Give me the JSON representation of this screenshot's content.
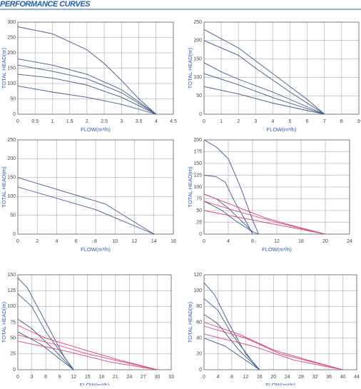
{
  "header": {
    "title": "PERFORMANCE CURVES"
  },
  "chart_data": [
    {
      "type": "line",
      "xlabel": "FLOW(m³/h)",
      "ylabel": "TOTAL HEAD(m)",
      "xlim": [
        0,
        4.5
      ],
      "xticks": [
        0,
        0.5,
        1,
        1.5,
        2,
        2.5,
        3,
        3.5,
        4,
        4.5
      ],
      "ylim": [
        0,
        300
      ],
      "yticks": [
        0,
        50,
        100,
        150,
        200,
        250,
        300
      ],
      "grid": true,
      "series": [
        {
          "color": "#3d5a8a",
          "x": [
            0,
            1,
            2,
            2.5,
            3,
            3.5,
            4
          ],
          "values": [
            285,
            262,
            210,
            165,
            110,
            50,
            0
          ]
        },
        {
          "color": "#3d5a8a",
          "x": [
            0,
            1,
            2,
            3,
            3.5,
            4
          ],
          "values": [
            180,
            160,
            130,
            80,
            40,
            0
          ]
        },
        {
          "color": "#3d5a8a",
          "x": [
            0,
            1,
            2,
            3,
            4
          ],
          "values": [
            160,
            140,
            115,
            70,
            0
          ]
        },
        {
          "color": "#3d5a8a",
          "x": [
            0,
            1,
            2,
            3,
            4
          ],
          "values": [
            130,
            118,
            95,
            55,
            0
          ]
        },
        {
          "color": "#3d5a8a",
          "x": [
            0,
            1,
            2,
            3,
            4
          ],
          "values": [
            92,
            72,
            55,
            32,
            0
          ]
        }
      ]
    },
    {
      "type": "line",
      "xlabel": "FLOW(m³/h)",
      "ylabel": "TOTAL HEAD(m)",
      "xlim": [
        0,
        9
      ],
      "xticks": [
        0,
        1,
        2,
        3,
        4,
        5,
        6,
        7,
        8,
        9
      ],
      "ylim": [
        0,
        250
      ],
      "yticks": [
        0,
        50,
        100,
        150,
        200,
        250
      ],
      "grid": true,
      "series": [
        {
          "color": "#3d5a8a",
          "x": [
            0,
            2,
            4,
            6,
            7
          ],
          "values": [
            230,
            180,
            110,
            40,
            0
          ]
        },
        {
          "color": "#3d5a8a",
          "x": [
            0,
            2,
            3,
            5,
            7
          ],
          "values": [
            200,
            160,
            125,
            60,
            0
          ]
        },
        {
          "color": "#3d5a8a",
          "x": [
            0,
            1,
            2,
            4,
            7
          ],
          "values": [
            140,
            115,
            95,
            60,
            0
          ]
        },
        {
          "color": "#3d5a8a",
          "x": [
            0,
            2,
            4,
            7
          ],
          "values": [
            110,
            80,
            45,
            0
          ]
        },
        {
          "color": "#3d5a8a",
          "x": [
            0,
            2,
            4,
            7
          ],
          "values": [
            75,
            55,
            30,
            0
          ]
        }
      ]
    },
    {
      "type": "line",
      "xlabel": "FLOW(m³/h)",
      "ylabel": "TOTAL HEAD(m)",
      "xlim": [
        0,
        16
      ],
      "xticks": [
        0,
        2,
        4,
        6,
        8,
        10,
        12,
        14,
        16
      ],
      "ylim": [
        0,
        250
      ],
      "yticks": [
        0,
        50,
        100,
        150,
        200,
        250
      ],
      "grid": true,
      "series": [
        {
          "color": "#3d5a8a",
          "x": [
            0,
            9,
            14
          ],
          "values": [
            150,
            80,
            0
          ]
        },
        {
          "color": "#3d5a8a",
          "x": [
            0,
            8,
            14
          ],
          "values": [
            125,
            65,
            0
          ]
        }
      ]
    },
    {
      "type": "line",
      "xlabel": "FLOW(m³/h)",
      "ylabel": "TOTAL HEAD(m)",
      "xlim": [
        0,
        24
      ],
      "xticks": [
        0,
        4,
        8,
        12,
        16,
        20,
        24
      ],
      "ylim": [
        0,
        200
      ],
      "yticks": [
        0,
        25,
        50,
        75,
        100,
        125,
        150,
        175,
        200
      ],
      "grid": true,
      "series": [
        {
          "color": "#3d5a8a",
          "x": [
            0,
            2,
            4,
            6,
            8,
            9
          ],
          "values": [
            200,
            185,
            160,
            100,
            30,
            0
          ]
        },
        {
          "color": "#3d5a8a",
          "x": [
            0,
            2,
            3.5,
            5,
            7,
            8
          ],
          "values": [
            125,
            122,
            110,
            70,
            25,
            0
          ]
        },
        {
          "color": "#3d5a8a",
          "x": [
            0,
            2,
            4,
            6,
            8,
            9
          ],
          "values": [
            85,
            75,
            55,
            30,
            5,
            0
          ]
        },
        {
          "color": "#3d5a8a",
          "x": [
            0,
            3,
            5,
            8
          ],
          "values": [
            70,
            50,
            30,
            5
          ]
        },
        {
          "color": "#e0407a",
          "x": [
            0,
            4,
            10,
            14,
            20
          ],
          "values": [
            85,
            65,
            35,
            20,
            0
          ]
        },
        {
          "color": "#e0407a",
          "x": [
            0,
            5,
            12,
            16,
            20
          ],
          "values": [
            70,
            50,
            25,
            12,
            0
          ]
        },
        {
          "color": "#e0407a",
          "x": [
            0,
            6,
            12,
            20
          ],
          "values": [
            50,
            35,
            20,
            0
          ]
        }
      ]
    },
    {
      "type": "line",
      "xlabel": "FLOW(m³/h)",
      "ylabel": "TOTAL HEAD(m)",
      "xlim": [
        0,
        33
      ],
      "xticks": [
        0,
        3,
        6,
        9,
        12,
        15,
        18,
        21,
        24,
        27,
        30,
        33
      ],
      "ylim": [
        0,
        150
      ],
      "yticks": [
        0,
        25,
        50,
        75,
        100,
        125,
        150
      ],
      "grid": true,
      "series": [
        {
          "color": "#3d5a8a",
          "x": [
            0,
            2,
            6,
            10,
            12
          ],
          "values": [
            145,
            130,
            75,
            20,
            0
          ]
        },
        {
          "color": "#3d5a8a",
          "x": [
            0,
            3,
            6,
            12
          ],
          "values": [
            120,
            100,
            60,
            0
          ]
        },
        {
          "color": "#3d5a8a",
          "x": [
            0,
            3,
            8,
            12
          ],
          "values": [
            80,
            65,
            30,
            0
          ]
        },
        {
          "color": "#3d5a8a",
          "x": [
            0,
            5,
            12
          ],
          "values": [
            60,
            40,
            0
          ]
        },
        {
          "color": "#e0407a",
          "x": [
            0,
            6,
            15,
            22,
            30
          ],
          "values": [
            70,
            50,
            30,
            15,
            0
          ]
        },
        {
          "color": "#e0407a",
          "x": [
            0,
            8,
            15,
            30
          ],
          "values": [
            55,
            40,
            25,
            0
          ]
        },
        {
          "color": "#e0407a",
          "x": [
            0,
            10,
            20,
            30
          ],
          "values": [
            45,
            30,
            12,
            0
          ]
        }
      ]
    },
    {
      "type": "line",
      "xlabel": "FLOW(m³/h)",
      "ylabel": "TOTAL HEAD(m)",
      "xlim": [
        0,
        44
      ],
      "xticks": [
        0,
        4,
        8,
        12,
        16,
        20,
        24,
        28,
        32,
        36,
        40,
        44
      ],
      "ylim": [
        0,
        120
      ],
      "yticks": [
        0,
        20,
        40,
        60,
        80,
        100,
        120
      ],
      "grid": true,
      "series": [
        {
          "color": "#3d5a8a",
          "x": [
            0,
            3,
            7,
            12,
            16
          ],
          "values": [
            110,
            95,
            60,
            20,
            0
          ]
        },
        {
          "color": "#3d5a8a",
          "x": [
            0,
            4,
            8,
            14,
            16
          ],
          "values": [
            90,
            75,
            45,
            10,
            0
          ]
        },
        {
          "color": "#3d5a8a",
          "x": [
            0,
            4,
            10,
            16
          ],
          "values": [
            70,
            58,
            25,
            0
          ]
        },
        {
          "color": "#3d5a8a",
          "x": [
            0,
            6,
            12,
            16
          ],
          "values": [
            40,
            30,
            12,
            0
          ]
        },
        {
          "color": "#e0407a",
          "x": [
            0,
            10,
            20,
            30,
            40
          ],
          "values": [
            60,
            45,
            25,
            12,
            0
          ]
        },
        {
          "color": "#e0407a",
          "x": [
            0,
            12,
            22,
            40
          ],
          "values": [
            55,
            40,
            20,
            0
          ]
        },
        {
          "color": "#e0407a",
          "x": [
            0,
            14,
            26,
            40
          ],
          "values": [
            45,
            30,
            12,
            0
          ]
        }
      ]
    }
  ]
}
